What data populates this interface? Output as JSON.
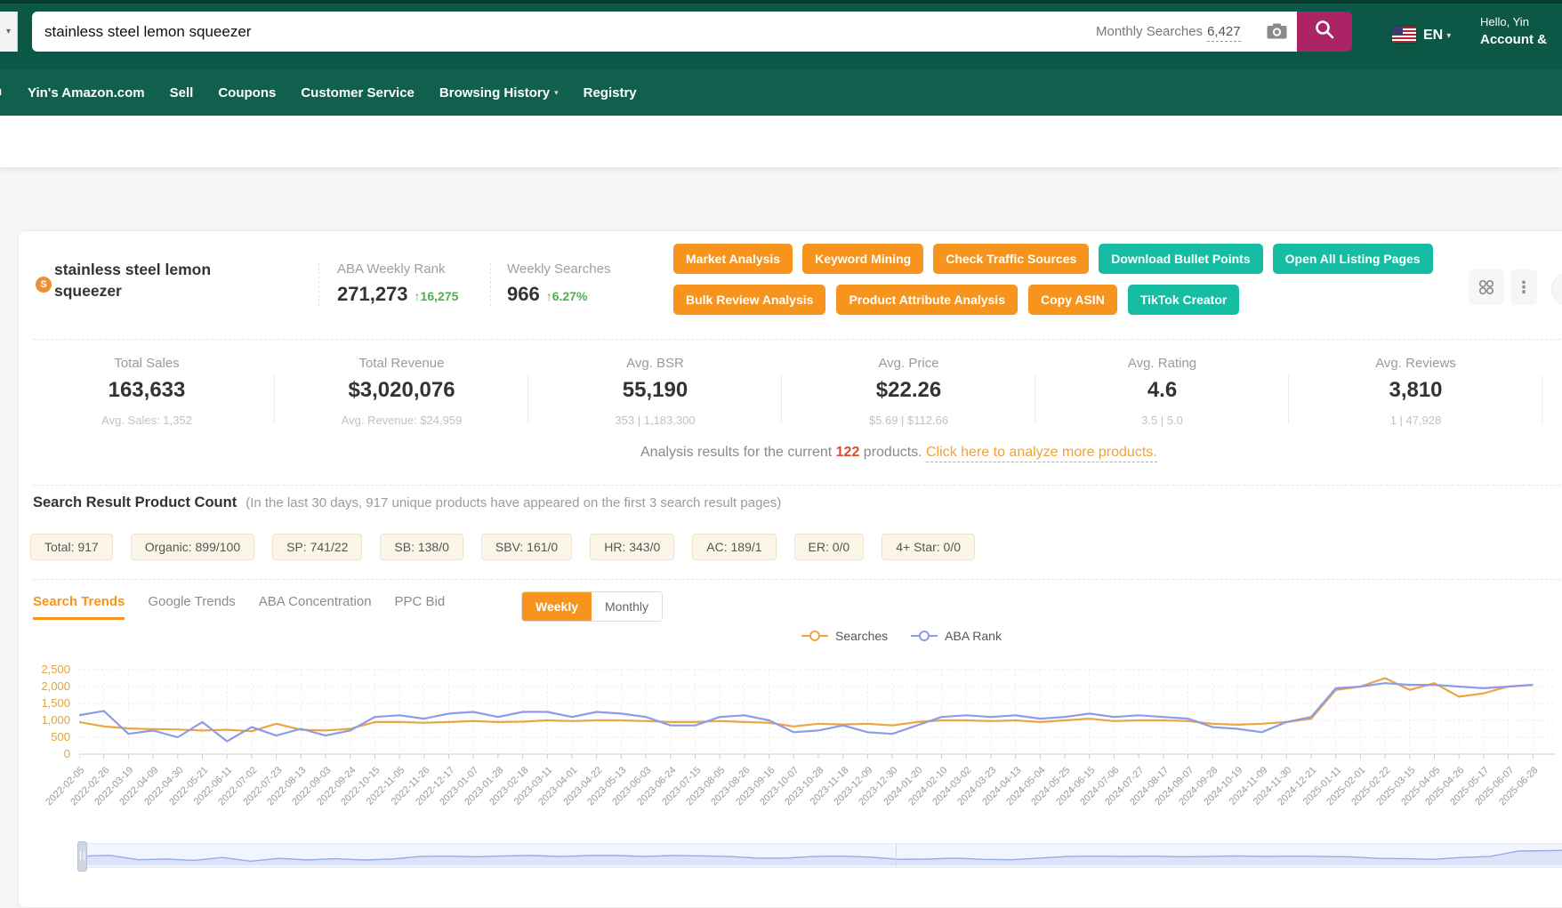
{
  "header": {
    "search_input": "stainless steel lemon squeezer",
    "monthly_searches_label": "Monthly Searches",
    "monthly_searches_value": "6,427",
    "language": "EN",
    "greeting": "Hello, Yin",
    "account": "Account &"
  },
  "nav": {
    "partial_left": "n",
    "items": [
      {
        "label": "Yin's Amazon.com",
        "caret": false
      },
      {
        "label": "Sell",
        "caret": false
      },
      {
        "label": "Coupons",
        "caret": false
      },
      {
        "label": "Customer Service",
        "caret": false
      },
      {
        "label": "Browsing History",
        "caret": true
      },
      {
        "label": "Registry",
        "caret": false
      }
    ]
  },
  "results_fragment": "n squeezer\"",
  "panel": {
    "keyword": "stainless steel lemon squeezer",
    "brand_letter": "S",
    "aba_weekly_rank": {
      "label": "ABA Weekly Rank",
      "value": "271,273",
      "delta": "↑16,275"
    },
    "weekly_searches": {
      "label": "Weekly Searches",
      "value": "966",
      "delta": "↑6.27%"
    },
    "buttons_row1": [
      {
        "label": "Market Analysis",
        "variant": "orange"
      },
      {
        "label": "Keyword Mining",
        "variant": "orange"
      },
      {
        "label": "Check Traffic Sources",
        "variant": "orange"
      },
      {
        "label": "Download Bullet Points",
        "variant": "teal"
      },
      {
        "label": "Open All Listing Pages",
        "variant": "teal"
      }
    ],
    "buttons_row2": [
      {
        "label": "Bulk Review Analysis",
        "variant": "orange"
      },
      {
        "label": "Product Attribute Analysis",
        "variant": "orange"
      },
      {
        "label": "Copy ASIN",
        "variant": "orange"
      },
      {
        "label": "TikTok Creator",
        "variant": "teal"
      }
    ],
    "stats": [
      {
        "label": "Total Sales",
        "value": "163,633",
        "sub": "Avg. Sales: 1,352"
      },
      {
        "label": "Total Revenue",
        "value": "$3,020,076",
        "sub": "Avg. Revenue: $24,959"
      },
      {
        "label": "Avg. BSR",
        "value": "55,190",
        "sub": "353 | 1,183,300"
      },
      {
        "label": "Avg. Price",
        "value": "$22.26",
        "sub": "$5.69 | $112.66"
      },
      {
        "label": "Avg. Rating",
        "value": "4.6",
        "sub": "3.5 | 5.0"
      },
      {
        "label": "Avg. Reviews",
        "value": "3,810",
        "sub": "1 | 47,928"
      }
    ],
    "analysis": {
      "prefix": "Analysis results for the current ",
      "count": "122",
      "middle": " products. ",
      "link": "Click here to analyze more products."
    },
    "srpc": {
      "title": "Search Result Product Count",
      "note": "(In the last 30 days, 917 unique products have appeared on the first 3 search result pages)",
      "tags": [
        "Total: 917",
        "Organic: 899/100",
        "SP: 741/22",
        "SB: 138/0",
        "SBV: 161/0",
        "HR: 343/0",
        "AC: 189/1",
        "ER: 0/0",
        "4+ Star: 0/0"
      ]
    },
    "tabs": {
      "items": [
        "Search Trends",
        "Google Trends",
        "ABA Concentration",
        "PPC Bid"
      ],
      "active_index": 0
    },
    "toggle": {
      "items": [
        "Weekly",
        "Monthly"
      ],
      "active_index": 0
    }
  },
  "icons": {
    "kebab_glyph": "⋮",
    "caret_glyph": "▾",
    "stub_caret_glyph": "▾"
  },
  "colors": {
    "amazon_green_header": "#0c5746",
    "amazon_green_nav": "#11604e",
    "magenta_search": "#ab2465",
    "button_orange": "#F7941D",
    "button_teal": "#17BDA3",
    "delta_green": "#4DAF51",
    "count_red": "#E0492E",
    "link_orange": "#F0A23C",
    "results_orange": "#c45500",
    "chart_searches": "#EAA640",
    "chart_aba": "#8D9BE8",
    "axis_label_orange": "#E2A23C"
  },
  "chart_data": {
    "type": "line",
    "title": "Search Trends (Weekly)",
    "legend": [
      "Searches",
      "ABA Rank"
    ],
    "legend_position": "top-center",
    "grid": true,
    "ylim": [
      0,
      2500
    ],
    "yticks": [
      2500,
      2000,
      1500,
      1000,
      500,
      0
    ],
    "x": [
      "2022-02-05",
      "2022-02-26",
      "2022-03-19",
      "2022-04-09",
      "2022-04-30",
      "2022-05-21",
      "2022-06-11",
      "2022-07-02",
      "2022-07-23",
      "2022-08-13",
      "2022-09-03",
      "2022-09-24",
      "2022-10-15",
      "2022-11-05",
      "2022-11-26",
      "2022-12-17",
      "2023-01-07",
      "2023-01-28",
      "2023-02-18",
      "2023-03-11",
      "2023-04-01",
      "2023-04-22",
      "2023-05-13",
      "2023-06-03",
      "2023-06-24",
      "2023-07-15",
      "2023-08-05",
      "2023-08-26",
      "2023-09-16",
      "2023-10-07",
      "2023-10-28",
      "2023-11-18",
      "2023-12-09",
      "2023-12-30",
      "2024-01-20",
      "2024-02-10",
      "2024-03-02",
      "2024-03-23",
      "2024-04-13",
      "2024-05-04",
      "2024-05-25",
      "2024-06-15",
      "2024-07-06",
      "2024-07-27",
      "2024-08-17",
      "2024-09-07",
      "2024-09-28",
      "2024-10-19",
      "2024-11-09",
      "2024-11-30",
      "2024-12-21",
      "2025-01-11",
      "2025-02-01",
      "2025-02-22",
      "2025-03-15",
      "2025-04-05",
      "2025-04-26",
      "2025-05-17",
      "2025-06-07",
      "2025-06-28"
    ],
    "series": [
      {
        "name": "Searches",
        "color": "#EAA640",
        "values": [
          950,
          820,
          760,
          740,
          730,
          700,
          720,
          680,
          900,
          720,
          700,
          750,
          950,
          950,
          930,
          950,
          980,
          950,
          960,
          1000,
          980,
          1000,
          1000,
          980,
          950,
          950,
          980,
          950,
          930,
          820,
          900,
          880,
          900,
          850,
          950,
          1000,
          1000,
          980,
          1000,
          950,
          1000,
          1050,
          980,
          1000,
          1000,
          980,
          900,
          870,
          900,
          950,
          1050,
          1900,
          2000,
          2250,
          1900,
          2100,
          1700,
          1800,
          2000,
          2050
        ]
      },
      {
        "name": "ABA Rank",
        "color": "#8D9BE8",
        "values": [
          1150,
          1280,
          600,
          700,
          500,
          950,
          380,
          800,
          550,
          750,
          550,
          700,
          1100,
          1150,
          1050,
          1200,
          1250,
          1100,
          1250,
          1250,
          1100,
          1250,
          1200,
          1100,
          850,
          850,
          1100,
          1150,
          1000,
          650,
          700,
          850,
          650,
          600,
          850,
          1100,
          1150,
          1100,
          1150,
          1050,
          1100,
          1200,
          1100,
          1150,
          1100,
          1050,
          800,
          750,
          650,
          950,
          1100,
          1950,
          2000,
          2100,
          2050,
          2050,
          2000,
          1950,
          2000,
          2050
        ]
      }
    ]
  }
}
